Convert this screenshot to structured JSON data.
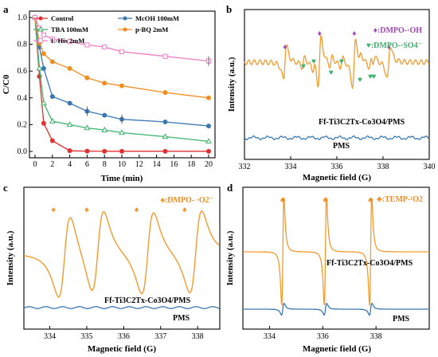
{
  "colors": {
    "orange": "#f39a2c",
    "blue": "#3a78b4",
    "purple": "#a347b8",
    "green": "#3cb36a"
  },
  "chart_data": [
    {
      "panel": "a",
      "type": "line",
      "xlabel": "Time (min)",
      "ylabel": "C/C0",
      "xlim": [
        0,
        20
      ],
      "ylim": [
        0,
        1.0
      ],
      "xticks": [
        "0",
        "2",
        "4",
        "6",
        "8",
        "10",
        "12",
        "14",
        "16",
        "18",
        "20"
      ],
      "yticks": [
        "0.0",
        "0.2",
        "0.4",
        "0.6",
        "0.8",
        "1.0"
      ],
      "x": [
        0,
        0.5,
        1,
        2,
        4,
        6,
        8,
        10,
        15,
        20
      ],
      "series": [
        {
          "name": "Control",
          "color": "#e03030",
          "marker": "circle",
          "values": [
            1.0,
            0.56,
            0.21,
            0.08,
            0.005,
            0.002,
            0.001,
            0.001,
            0.001,
            0.001
          ]
        },
        {
          "name": "McOH 100mM",
          "color": "#3a78b4",
          "marker": "circle",
          "values": [
            1.0,
            0.78,
            0.62,
            0.41,
            0.36,
            0.3,
            0.27,
            0.24,
            0.22,
            0.19
          ]
        },
        {
          "name": "TBA 100mM",
          "color": "#3cb36a",
          "marker": "triangle",
          "values": [
            1.0,
            0.62,
            0.36,
            0.225,
            0.2,
            0.175,
            0.16,
            0.14,
            0.11,
            0.075
          ]
        },
        {
          "name": "p-BQ 2mM",
          "color": "#f08d1e",
          "marker": "circle",
          "values": [
            1.0,
            0.81,
            0.73,
            0.67,
            0.62,
            0.55,
            0.51,
            0.49,
            0.44,
            0.4
          ]
        },
        {
          "name": "L-His 2mM",
          "color": "#f07ec8",
          "marker": "square",
          "values": [
            1.0,
            0.92,
            0.87,
            0.84,
            0.82,
            0.795,
            0.78,
            0.745,
            0.71,
            0.675
          ]
        }
      ]
    },
    {
      "panel": "b",
      "type": "line",
      "xlabel": "Magnetic field (G)",
      "ylabel": "Intensity (a.u.)",
      "xlim": [
        332,
        340
      ],
      "xticks": [
        "332",
        "334",
        "336",
        "338",
        "340"
      ],
      "series": [
        {
          "name": "Ff-Ti3C2Tx-Co3O4/PMS",
          "color": "#f39a2c"
        },
        {
          "name": "PMS",
          "color": "#3a78b4"
        }
      ],
      "legend": [
        "♦:DMPO-·OH",
        "♥:DMPO-·SO4⁻"
      ]
    },
    {
      "panel": "c",
      "type": "line",
      "xlabel": "Magnetic field (G)",
      "ylabel": "Intensity (a.u.)",
      "xlim": [
        333.3,
        338.6
      ],
      "xticks": [
        "334",
        "335",
        "336",
        "337",
        "338"
      ],
      "series": [
        {
          "name": "Ff-Ti3C2Tx-Co3O4/PMS",
          "color": "#f39a2c"
        },
        {
          "name": "PMS",
          "color": "#3a78b4"
        }
      ],
      "legend": [
        "♠:DMPO- ·O2⁻"
      ]
    },
    {
      "panel": "d",
      "type": "line",
      "xlabel": "Magnetic field (G)",
      "ylabel": "Intensity (a.u.)",
      "xlim": [
        333,
        340
      ],
      "xticks": [
        "334",
        "336",
        "338"
      ],
      "series": [
        {
          "name": "Ff-Ti3C2Tx-Co3O4/PMS",
          "color": "#f39a2c"
        },
        {
          "name": "PMS",
          "color": "#3a78b4"
        }
      ],
      "legend": [
        "♣:TEMP-¹O2"
      ]
    }
  ],
  "labels": {
    "a_panel": "a",
    "a_ylabel": "C/C0",
    "a_xlabel": "Time (min)",
    "b_panel": "b",
    "b_ylabel": "Intensity (a.u.)",
    "b_xlabel": "Magnetic field (G)",
    "b_leg_oh": "♦:DMPO-·OH",
    "b_leg_so4": "♥:DMPO-·SO4⁻",
    "b_sample": "Ff-Ti3C2Tx-Co3O4/PMS",
    "b_pms": "PMS",
    "c_panel": "c",
    "c_ylabel": "Intensity (a.u.)",
    "c_xlabel": "Magnetic field (G)",
    "c_leg": "♠:DMPO- ·O2⁻",
    "c_sample": "Ff-Ti3C2Tx-Co3O4/PMS",
    "c_pms": "PMS",
    "d_panel": "d",
    "d_ylabel": "Intensity (a.u.)",
    "d_xlabel": "Magnetic field (G)",
    "d_leg": "♣:TEMP-¹O2",
    "d_sample": "Ff-Ti3C2Tx-Co3O4/PMS",
    "d_pms": "PMS"
  }
}
